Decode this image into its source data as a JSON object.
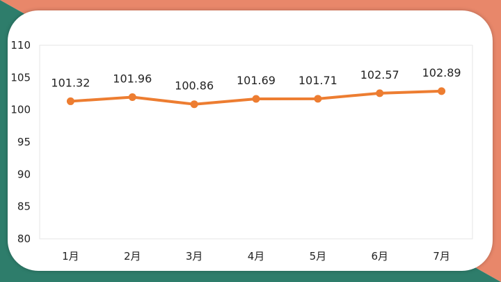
{
  "colors": {
    "series": "#ED7D31",
    "frame_teal": "#2E7D6B",
    "frame_salmon": "#E8876A",
    "card": "#FFFFFF",
    "plot_border": "#E6E6E6"
  },
  "chart_data": {
    "type": "line",
    "categories": [
      "1月",
      "2月",
      "3月",
      "4月",
      "5月",
      "6月",
      "7月"
    ],
    "series": [
      {
        "values": [
          101.32,
          101.96,
          100.86,
          101.69,
          101.71,
          102.57,
          102.89
        ]
      }
    ],
    "data_labels": [
      "101.32",
      "101.96",
      "100.86",
      "101.69",
      "101.71",
      "102.57",
      "102.89"
    ],
    "y_ticks": [
      "80",
      "85",
      "90",
      "95",
      "100",
      "105",
      "110"
    ],
    "ylim": [
      80,
      110
    ],
    "grid": false,
    "legend": "none",
    "markers": "circle"
  }
}
